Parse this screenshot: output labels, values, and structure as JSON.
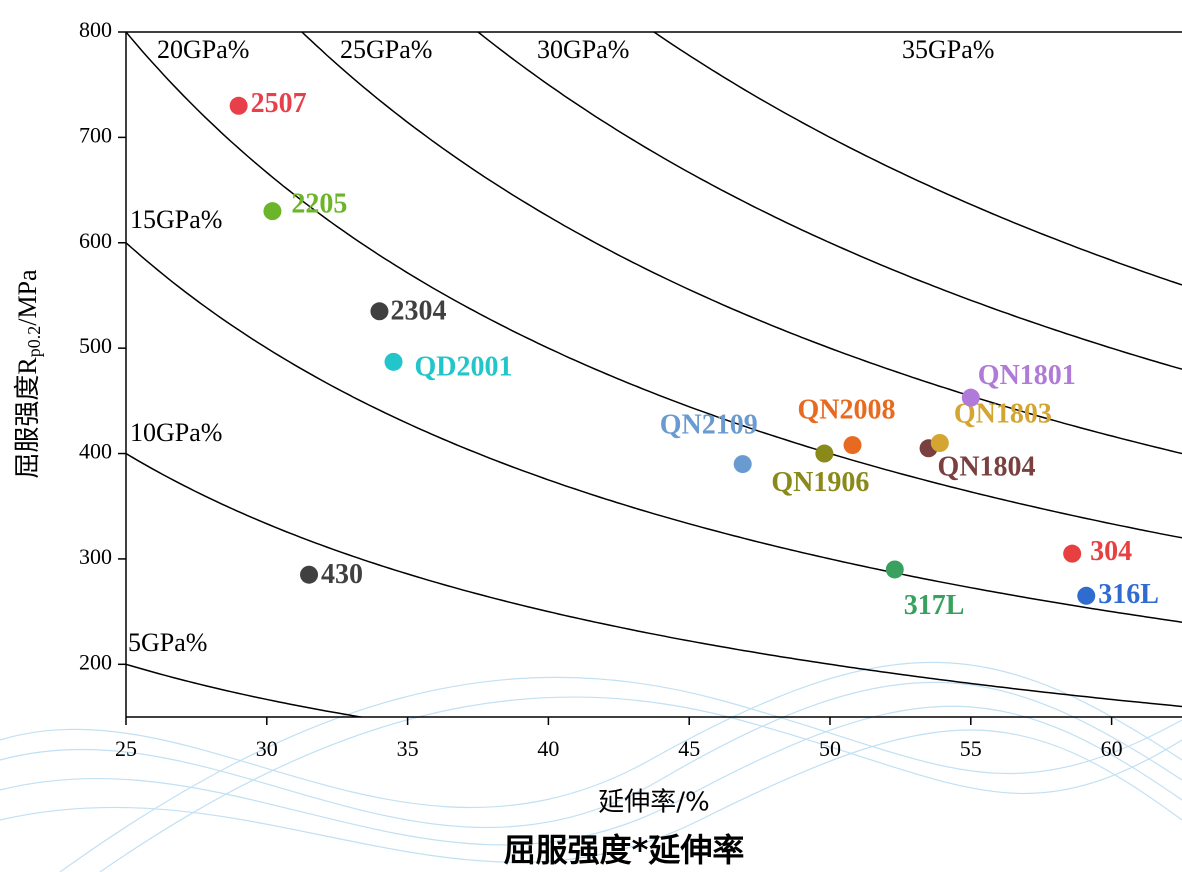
{
  "chart_data": {
    "type": "scatter",
    "title": "屈服强度*延伸率",
    "x_label": "延伸率/%",
    "y_label": [
      "屈服强度R",
      "p0.2",
      "/MPa"
    ],
    "xlim": [
      25,
      62.5
    ],
    "ylim": [
      150,
      800
    ],
    "xticks": [
      25,
      30,
      35,
      40,
      45,
      50,
      55,
      60
    ],
    "yticks": [
      200,
      300,
      400,
      500,
      600,
      700,
      800
    ],
    "iso_curves": [
      {
        "value": 5,
        "label": "5GPa%"
      },
      {
        "value": 10,
        "label": "10GPa%"
      },
      {
        "value": 15,
        "label": "15GPa%"
      },
      {
        "value": 20,
        "label": "20GPa%"
      },
      {
        "value": 25,
        "label": "25GPa%"
      },
      {
        "value": 30,
        "label": "30GPa%"
      },
      {
        "value": 35,
        "label": "35GPa%"
      }
    ],
    "series": [
      {
        "name": "2507",
        "color": "#e8404a",
        "x": [
          29.0
        ],
        "values": [
          730
        ]
      },
      {
        "name": "2205",
        "color": "#6cb52a",
        "x": [
          30.2
        ],
        "values": [
          630
        ]
      },
      {
        "name": "2304",
        "color": "#404040",
        "x": [
          34.0
        ],
        "values": [
          535
        ]
      },
      {
        "name": "QD2001",
        "color": "#22c5c9",
        "x": [
          34.5
        ],
        "values": [
          487
        ]
      },
      {
        "name": "430",
        "color": "#404040",
        "x": [
          31.5
        ],
        "values": [
          285
        ]
      },
      {
        "name": "QN2109",
        "color": "#6a9bd0",
        "x": [
          46.9
        ],
        "values": [
          390
        ]
      },
      {
        "name": "QN1906",
        "color": "#8a8a1a",
        "x": [
          49.8
        ],
        "values": [
          400
        ]
      },
      {
        "name": "QN2008",
        "color": "#e86a20",
        "x": [
          50.8
        ],
        "values": [
          408
        ]
      },
      {
        "name": "QN1804",
        "color": "#7a4040",
        "x": [
          53.5
        ],
        "values": [
          405
        ]
      },
      {
        "name": "QN1803",
        "color": "#d4a530",
        "x": [
          53.9
        ],
        "values": [
          410
        ]
      },
      {
        "name": "QN1801",
        "color": "#b07ad8",
        "x": [
          55.0
        ],
        "values": [
          453
        ]
      },
      {
        "name": "304",
        "color": "#e84040",
        "x": [
          58.6
        ],
        "values": [
          305
        ]
      },
      {
        "name": "316L",
        "color": "#2f6ccf",
        "x": [
          59.1
        ],
        "values": [
          265
        ]
      },
      {
        "name": "317L",
        "color": "#3aa060",
        "x": [
          52.3
        ],
        "values": [
          290
        ]
      }
    ]
  }
}
